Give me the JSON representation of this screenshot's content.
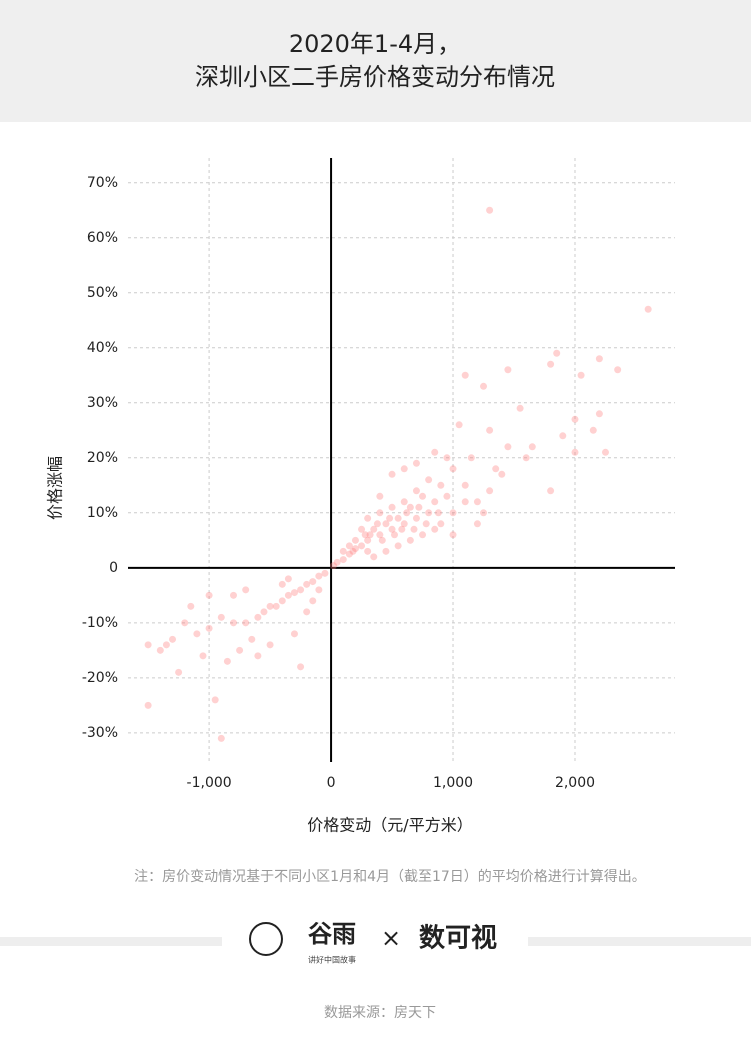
{
  "chart_data": {
    "type": "scatter",
    "title": "2020年1-4月，",
    "subtitle": "深圳小区二手房价格变动分布情况",
    "x_label": "价格变动（元/平方米）",
    "y_label": "价格涨幅",
    "note": "注：房价变动情况基于不同小区1月和4月（截至17日）的平均价格进行计算得出。",
    "source": "数据来源：房天下",
    "logos": [
      "谷雨",
      "讲好中国故事",
      "×",
      "数可视"
    ],
    "color": "#ff7b7b",
    "grid": true,
    "xlim": [
      -1665,
      2820
    ],
    "ylim": [
      -35.3,
      74.5
    ],
    "xticks": [
      {
        "value": -1000,
        "label": "-1,000"
      },
      0,
      {
        "value": 1000,
        "label": "1,000"
      },
      {
        "value": 2000,
        "label": "2,000"
      }
    ],
    "yticks": [
      {
        "value": -30,
        "label": "-30%"
      },
      {
        "value": -20,
        "label": "-20%"
      },
      {
        "value": -10,
        "label": "-10%"
      },
      0,
      {
        "value": 10,
        "label": "10%"
      },
      {
        "value": 20,
        "label": "20%"
      },
      {
        "value": 30,
        "label": "30%"
      },
      {
        "value": 40,
        "label": "40%"
      },
      {
        "value": 50,
        "label": "50%"
      },
      {
        "value": 60,
        "label": "60%"
      },
      {
        "value": 70,
        "label": "70%"
      }
    ],
    "x": [
      2600,
      1300,
      1850,
      2200,
      2350,
      2050,
      1800,
      1450,
      1250,
      1100,
      1550,
      2000,
      2200,
      2150,
      2000,
      2250,
      1900,
      1800,
      1600,
      1650,
      1450,
      1300,
      1150,
      1050,
      1400,
      1200,
      1000,
      900,
      850,
      800,
      750,
      700,
      650,
      600,
      550,
      500,
      450,
      400,
      350,
      300,
      250,
      200,
      150,
      100,
      50,
      20,
      600,
      700,
      500,
      400,
      300,
      800,
      900,
      1000,
      950,
      1100,
      650,
      550,
      450,
      350,
      750,
      850,
      400,
      500,
      600,
      700,
      1000,
      1200,
      1100,
      950,
      850,
      300,
      200,
      250,
      150,
      100,
      720,
      620,
      520,
      420,
      320,
      880,
      780,
      680,
      580,
      480,
      380,
      280,
      180,
      1300,
      1250,
      1350,
      -50,
      -100,
      -150,
      -200,
      -250,
      -300,
      -350,
      -400,
      -450,
      -500,
      -550,
      -600,
      -700,
      -800,
      -900,
      -1000,
      -1100,
      -1200,
      -1300,
      -1400,
      -1500,
      -1500,
      -900,
      -950,
      -1250,
      -1150,
      -1000,
      -800,
      -600,
      -500,
      -300,
      -250,
      -200,
      -350,
      -150,
      -100,
      -400,
      -700,
      -650,
      -750,
      -850,
      -1050,
      -1350
    ],
    "values": [
      47,
      65,
      39,
      38,
      36,
      35,
      37,
      36,
      33,
      35,
      29,
      27,
      28,
      25,
      21,
      21,
      24,
      14,
      20,
      22,
      22,
      25,
      20,
      26,
      17,
      12,
      18,
      15,
      12,
      10,
      13,
      9,
      11,
      8,
      9,
      7,
      8,
      6,
      7,
      5,
      4,
      3.5,
      2.5,
      1.5,
      1,
      0.4,
      12,
      14,
      11,
      10,
      9,
      16,
      8,
      10,
      13,
      12,
      5,
      4,
      3,
      2,
      6,
      7,
      13,
      17,
      18,
      19,
      6,
      8,
      15,
      20,
      21,
      3,
      5,
      7,
      4,
      3,
      11,
      10,
      6,
      5,
      6,
      10,
      8,
      7,
      7,
      9,
      8,
      6,
      3,
      14,
      10,
      18,
      -1,
      -1.5,
      -2.5,
      -3,
      -4,
      -4.5,
      -5,
      -6,
      -7,
      -7,
      -8,
      -9,
      -10,
      -10,
      -9,
      -11,
      -12,
      -10,
      -13,
      -15,
      -14,
      -25,
      -31,
      -24,
      -19,
      -7,
      -5,
      -5,
      -16,
      -14,
      -12,
      -18,
      -8,
      -2,
      -6,
      -4,
      -3,
      -4,
      -13,
      -15,
      -17,
      -16,
      -14
    ]
  }
}
